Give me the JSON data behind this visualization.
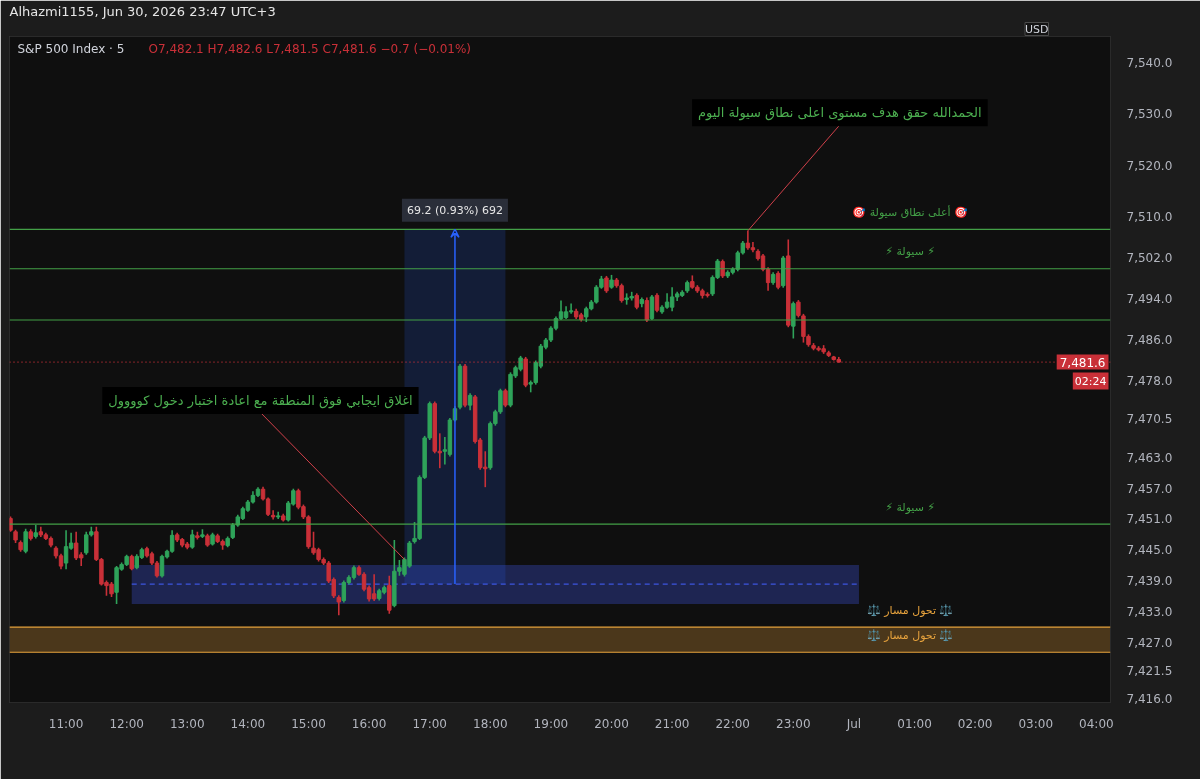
{
  "chart_data": {
    "type": "candlestick",
    "title": "S&P 500 Index · 5",
    "subtitle": "O7,482.1 H7,482.6 L7,481.5 C7,481.6 −0.7 (−0.01%)",
    "ylabel": "USD",
    "xlim": [
      "2026-06-30T10:04",
      "2026-07-01T04:14"
    ],
    "ylim": [
      7415.2,
      7545.1
    ],
    "xticks": [
      {
        "value": "2026-06-30T11:00",
        "label": "11:00"
      },
      {
        "value": "2026-06-30T12:00",
        "label": "12:00"
      },
      {
        "value": "2026-06-30T13:00",
        "label": "13:00"
      },
      {
        "value": "2026-06-30T14:00",
        "label": "14:00"
      },
      {
        "value": "2026-06-30T15:00",
        "label": "15:00"
      },
      {
        "value": "2026-06-30T16:00",
        "label": "16:00"
      },
      {
        "value": "2026-06-30T17:00",
        "label": "17:00"
      },
      {
        "value": "2026-06-30T18:00",
        "label": "18:00"
      },
      {
        "value": "2026-06-30T19:00",
        "label": "19:00"
      },
      {
        "value": "2026-06-30T20:00",
        "label": "20:00"
      },
      {
        "value": "2026-06-30T21:00",
        "label": "21:00"
      },
      {
        "value": "2026-06-30T22:00",
        "label": "22:00"
      },
      {
        "value": "2026-06-30T23:00",
        "label": "23:00"
      },
      {
        "value": "2026-07-01T00:00",
        "label": "Jul"
      },
      {
        "value": "2026-07-01T01:00",
        "label": "01:00"
      },
      {
        "value": "2026-07-01T02:00",
        "label": "02:00"
      },
      {
        "value": "2026-07-01T03:00",
        "label": "03:00"
      },
      {
        "value": "2026-07-01T04:00",
        "label": "04:00"
      }
    ],
    "yticks": [
      {
        "value": 7416.0,
        "label": "7,416.0"
      },
      {
        "value": 7421.5,
        "label": "7,421.5"
      },
      {
        "value": 7427.0,
        "label": "7,427.0"
      },
      {
        "value": 7433.0,
        "label": "7,433.0"
      },
      {
        "value": 7439.0,
        "label": "7,439.0"
      },
      {
        "value": 7445.0,
        "label": "7,445.0"
      },
      {
        "value": 7451.0,
        "label": "7,451.0"
      },
      {
        "value": 7457.0,
        "label": "7,457.0"
      },
      {
        "value": 7463.0,
        "label": "7,463.0"
      },
      {
        "value": 7470.5,
        "label": "7,470.5"
      },
      {
        "value": 7478.0,
        "label": "7,478.0"
      },
      {
        "value": 7486.0,
        "label": "7,486.0"
      },
      {
        "value": 7494.0,
        "label": "7,494.0"
      },
      {
        "value": 7502.0,
        "label": "7,502.0"
      },
      {
        "value": 7510.0,
        "label": "7,510.0"
      },
      {
        "value": 7520.0,
        "label": "7,520.0"
      },
      {
        "value": 7530.0,
        "label": "7,530.0"
      },
      {
        "value": 7540.0,
        "label": "7,540.0"
      }
    ],
    "x": [
      "2026-06-30T10:05",
      "2026-06-30T10:10",
      "2026-06-30T10:15",
      "2026-06-30T10:20",
      "2026-06-30T10:25",
      "2026-06-30T10:30",
      "2026-06-30T10:35",
      "2026-06-30T10:40",
      "2026-06-30T10:45",
      "2026-06-30T10:50",
      "2026-06-30T10:55",
      "2026-06-30T11:00",
      "2026-06-30T11:05",
      "2026-06-30T11:10",
      "2026-06-30T11:15",
      "2026-06-30T11:20",
      "2026-06-30T11:25",
      "2026-06-30T11:30",
      "2026-06-30T11:35",
      "2026-06-30T11:40",
      "2026-06-30T11:45",
      "2026-06-30T11:50",
      "2026-06-30T11:55",
      "2026-06-30T12:00",
      "2026-06-30T12:05",
      "2026-06-30T12:10",
      "2026-06-30T12:15",
      "2026-06-30T12:20",
      "2026-06-30T12:25",
      "2026-06-30T12:30",
      "2026-06-30T12:35",
      "2026-06-30T12:40",
      "2026-06-30T12:45",
      "2026-06-30T12:50",
      "2026-06-30T12:55",
      "2026-06-30T13:00",
      "2026-06-30T13:05",
      "2026-06-30T13:10",
      "2026-06-30T13:15",
      "2026-06-30T13:20",
      "2026-06-30T13:25",
      "2026-06-30T13:30",
      "2026-06-30T13:35",
      "2026-06-30T13:40",
      "2026-06-30T13:45",
      "2026-06-30T13:50",
      "2026-06-30T13:55",
      "2026-06-30T14:00",
      "2026-06-30T14:05",
      "2026-06-30T14:10",
      "2026-06-30T14:15",
      "2026-06-30T14:20",
      "2026-06-30T14:25",
      "2026-06-30T14:30",
      "2026-06-30T14:35",
      "2026-06-30T14:40",
      "2026-06-30T14:45",
      "2026-06-30T14:50",
      "2026-06-30T14:55",
      "2026-06-30T15:00",
      "2026-06-30T15:05",
      "2026-06-30T15:10",
      "2026-06-30T15:15",
      "2026-06-30T15:20",
      "2026-06-30T15:25",
      "2026-06-30T15:30",
      "2026-06-30T15:35",
      "2026-06-30T15:40",
      "2026-06-30T15:45",
      "2026-06-30T15:50",
      "2026-06-30T15:55",
      "2026-06-30T16:00",
      "2026-06-30T16:05",
      "2026-06-30T16:10",
      "2026-06-30T16:15",
      "2026-06-30T16:20",
      "2026-06-30T16:25",
      "2026-06-30T16:30",
      "2026-06-30T16:35",
      "2026-06-30T16:40",
      "2026-06-30T16:45",
      "2026-06-30T16:50",
      "2026-06-30T16:55",
      "2026-06-30T17:00",
      "2026-06-30T17:05",
      "2026-06-30T17:10",
      "2026-06-30T17:15",
      "2026-06-30T17:20",
      "2026-06-30T17:25",
      "2026-06-30T17:30",
      "2026-06-30T17:35",
      "2026-06-30T17:40",
      "2026-06-30T17:45",
      "2026-06-30T17:50",
      "2026-06-30T17:55",
      "2026-06-30T18:00",
      "2026-06-30T18:05",
      "2026-06-30T18:10",
      "2026-06-30T18:15",
      "2026-06-30T18:20",
      "2026-06-30T18:25",
      "2026-06-30T18:30",
      "2026-06-30T18:35",
      "2026-06-30T18:40",
      "2026-06-30T18:45",
      "2026-06-30T18:50",
      "2026-06-30T18:55",
      "2026-06-30T19:00",
      "2026-06-30T19:05",
      "2026-06-30T19:10",
      "2026-06-30T19:15",
      "2026-06-30T19:20",
      "2026-06-30T19:25",
      "2026-06-30T19:30",
      "2026-06-30T19:35",
      "2026-06-30T19:40",
      "2026-06-30T19:45",
      "2026-06-30T19:50",
      "2026-06-30T19:55",
      "2026-06-30T20:00",
      "2026-06-30T20:05",
      "2026-06-30T20:10",
      "2026-06-30T20:15",
      "2026-06-30T20:20",
      "2026-06-30T20:25",
      "2026-06-30T20:30",
      "2026-06-30T20:35",
      "2026-06-30T20:40",
      "2026-06-30T20:45",
      "2026-06-30T20:50",
      "2026-06-30T20:55",
      "2026-06-30T21:00",
      "2026-06-30T21:05",
      "2026-06-30T21:10",
      "2026-06-30T21:15",
      "2026-06-30T21:20",
      "2026-06-30T21:25",
      "2026-06-30T21:30",
      "2026-06-30T21:35",
      "2026-06-30T21:40",
      "2026-06-30T21:45",
      "2026-06-30T21:50",
      "2026-06-30T21:55",
      "2026-06-30T22:00",
      "2026-06-30T22:05",
      "2026-06-30T22:10",
      "2026-06-30T22:15",
      "2026-06-30T22:20",
      "2026-06-30T22:25",
      "2026-06-30T22:30",
      "2026-06-30T22:35",
      "2026-06-30T22:40",
      "2026-06-30T22:45",
      "2026-06-30T22:50",
      "2026-06-30T22:55",
      "2026-06-30T23:00",
      "2026-06-30T23:05",
      "2026-06-30T23:10",
      "2026-06-30T23:15",
      "2026-06-30T23:20",
      "2026-06-30T23:25",
      "2026-06-30T23:30",
      "2026-06-30T23:35",
      "2026-06-30T23:40",
      "2026-06-30T23:45"
    ],
    "ohlc": [
      [
        7451.1,
        7451.5,
        7448.5,
        7448.8
      ],
      [
        7448.5,
        7448.9,
        7446.3,
        7446.9
      ],
      [
        7446.4,
        7446.8,
        7444.6,
        7445.0
      ],
      [
        7444.7,
        7449.1,
        7444.3,
        7448.5
      ],
      [
        7448.5,
        7449.0,
        7446.8,
        7447.2
      ],
      [
        7447.6,
        7449.8,
        7447.2,
        7448.3
      ],
      [
        7448.5,
        7449.5,
        7447.5,
        7447.9
      ],
      [
        7447.9,
        7448.3,
        7446.9,
        7447.2
      ],
      [
        7447.2,
        7447.6,
        7445.5,
        7445.9
      ],
      [
        7445.3,
        7445.7,
        7443.3,
        7443.8
      ],
      [
        7443.8,
        7444.2,
        7441.2,
        7441.8
      ],
      [
        7442.4,
        7448.8,
        7441.2,
        7445.6
      ],
      [
        7445.3,
        7448.3,
        7445.0,
        7446.3
      ],
      [
        7446.3,
        7448.5,
        7443.0,
        7443.4
      ],
      [
        7444.0,
        7444.5,
        7441.8,
        7443.4
      ],
      [
        7444.4,
        7448.5,
        7444.0,
        7447.9
      ],
      [
        7447.9,
        7449.5,
        7447.6,
        7448.5
      ],
      [
        7448.5,
        7449.5,
        7442.8,
        7443.1
      ],
      [
        7443.1,
        7443.4,
        7438.0,
        7438.3
      ],
      [
        7438.6,
        7439.0,
        7436.0,
        7438.0
      ],
      [
        7438.3,
        7438.7,
        7435.8,
        7436.4
      ],
      [
        7436.7,
        7441.8,
        7434.4,
        7441.5
      ],
      [
        7441.2,
        7442.5,
        7440.9,
        7442.1
      ],
      [
        7442.1,
        7444.0,
        7441.8,
        7443.7
      ],
      [
        7443.7,
        7444.0,
        7441.0,
        7441.3
      ],
      [
        7441.5,
        7444.1,
        7441.2,
        7443.7
      ],
      [
        7443.5,
        7445.4,
        7443.2,
        7445.0
      ],
      [
        7445.2,
        7445.6,
        7443.5,
        7443.8
      ],
      [
        7444.2,
        7444.6,
        7442.0,
        7442.4
      ],
      [
        7442.4,
        7442.8,
        7439.6,
        7439.9
      ],
      [
        7439.9,
        7444.0,
        7439.6,
        7443.7
      ],
      [
        7443.6,
        7445.0,
        7443.3,
        7444.7
      ],
      [
        7444.7,
        7448.8,
        7444.4,
        7447.8
      ],
      [
        7447.9,
        7448.3,
        7446.5,
        7446.9
      ],
      [
        7447.0,
        7447.3,
        7445.5,
        7445.9
      ],
      [
        7446.1,
        7446.5,
        7445.1,
        7445.5
      ],
      [
        7445.5,
        7448.9,
        7445.2,
        7447.9
      ],
      [
        7447.7,
        7448.5,
        7447.0,
        7447.4
      ],
      [
        7447.6,
        7449.0,
        7447.3,
        7447.9
      ],
      [
        7447.7,
        7448.1,
        7445.6,
        7445.9
      ],
      [
        7446.1,
        7448.3,
        7445.8,
        7447.9
      ],
      [
        7447.7,
        7448.1,
        7446.3,
        7446.6
      ],
      [
        7446.6,
        7447.0,
        7445.0,
        7445.9
      ],
      [
        7445.8,
        7447.6,
        7445.5,
        7447.2
      ],
      [
        7447.4,
        7450.2,
        7447.1,
        7449.8
      ],
      [
        7449.8,
        7451.8,
        7449.5,
        7451.4
      ],
      [
        7451.1,
        7453.4,
        7450.8,
        7453.0
      ],
      [
        7452.7,
        7454.7,
        7452.4,
        7454.3
      ],
      [
        7454.3,
        7456.4,
        7454.0,
        7455.6
      ],
      [
        7455.6,
        7457.2,
        7455.3,
        7456.8
      ],
      [
        7456.8,
        7457.3,
        7454.6,
        7454.9
      ],
      [
        7454.9,
        7455.2,
        7451.6,
        7451.9
      ],
      [
        7451.7,
        7452.7,
        7450.9,
        7451.4
      ],
      [
        7451.4,
        7452.4,
        7451.0,
        7451.6
      ],
      [
        7451.6,
        7452.0,
        7450.5,
        7450.8
      ],
      [
        7450.8,
        7454.5,
        7450.5,
        7454.1
      ],
      [
        7453.9,
        7456.9,
        7453.6,
        7456.5
      ],
      [
        7456.5,
        7456.9,
        7452.9,
        7453.3
      ],
      [
        7453.4,
        7453.8,
        7451.0,
        7451.4
      ],
      [
        7451.4,
        7451.7,
        7445.2,
        7445.6
      ],
      [
        7445.3,
        7448.5,
        7444.0,
        7444.4
      ],
      [
        7445.0,
        7445.4,
        7442.7,
        7443.1
      ],
      [
        7443.1,
        7443.5,
        7442.0,
        7442.4
      ],
      [
        7442.4,
        7442.8,
        7438.5,
        7438.9
      ],
      [
        7439.2,
        7439.6,
        7435.6,
        7436.0
      ],
      [
        7435.7,
        7436.1,
        7432.2,
        7434.8
      ],
      [
        7435.1,
        7439.0,
        7434.7,
        7438.6
      ],
      [
        7438.6,
        7440.0,
        7438.2,
        7439.6
      ],
      [
        7439.6,
        7441.9,
        7439.2,
        7441.5
      ],
      [
        7441.5,
        7441.9,
        7439.9,
        7440.2
      ],
      [
        7440.2,
        7440.6,
        7436.9,
        7437.3
      ],
      [
        7437.6,
        7438.0,
        7434.9,
        7435.4
      ],
      [
        7436.4,
        7440.2,
        7435.0,
        7435.4
      ],
      [
        7435.5,
        7437.4,
        7435.1,
        7437.0
      ],
      [
        7436.7,
        7438.0,
        7436.3,
        7437.6
      ],
      [
        7438.0,
        7439.9,
        7432.5,
        7433.2
      ],
      [
        7434.1,
        7446.9,
        7433.8,
        7440.8
      ],
      [
        7440.8,
        7443.0,
        7439.9,
        7441.5
      ],
      [
        7440.2,
        7443.5,
        7439.8,
        7443.1
      ],
      [
        7441.8,
        7446.7,
        7441.5,
        7446.3
      ],
      [
        7446.6,
        7450.4,
        7446.2,
        7447.2
      ],
      [
        7447.2,
        7459.5,
        7446.9,
        7459.1
      ],
      [
        7459.1,
        7467.2,
        7458.8,
        7466.8
      ],
      [
        7466.8,
        7473.9,
        7466.4,
        7473.5
      ],
      [
        7473.5,
        7473.9,
        7463.8,
        7464.2
      ],
      [
        7464.2,
        7467.7,
        7460.9,
        7463.9
      ],
      [
        7464.2,
        7467.0,
        7461.6,
        7464.5
      ],
      [
        7463.6,
        7470.7,
        7463.2,
        7470.3
      ],
      [
        7470.3,
        7473.0,
        7470.0,
        7472.5
      ],
      [
        7472.8,
        7481.2,
        7472.4,
        7480.8
      ],
      [
        7480.8,
        7481.2,
        7472.8,
        7473.2
      ],
      [
        7473.2,
        7475.5,
        7472.2,
        7475.1
      ],
      [
        7474.8,
        7475.2,
        7465.7,
        7466.1
      ],
      [
        7466.4,
        7466.8,
        7460.6,
        7461.0
      ],
      [
        7461.1,
        7464.2,
        7457.2,
        7460.8
      ],
      [
        7461.0,
        7470.0,
        7460.6,
        7469.6
      ],
      [
        7469.6,
        7472.3,
        7469.2,
        7471.9
      ],
      [
        7471.9,
        7476.4,
        7471.5,
        7476.0
      ],
      [
        7476.0,
        7476.4,
        7472.8,
        7473.2
      ],
      [
        7473.2,
        7479.6,
        7472.8,
        7479.2
      ],
      [
        7478.9,
        7480.9,
        7478.5,
        7480.5
      ],
      [
        7480.2,
        7482.8,
        7479.8,
        7482.4
      ],
      [
        7482.2,
        7482.6,
        7476.7,
        7477.1
      ],
      [
        7477.3,
        7478.0,
        7475.7,
        7477.6
      ],
      [
        7477.6,
        7481.9,
        7477.2,
        7481.5
      ],
      [
        7480.8,
        7485.1,
        7480.4,
        7484.7
      ],
      [
        7484.5,
        7486.3,
        7484.1,
        7485.9
      ],
      [
        7485.9,
        7488.6,
        7485.5,
        7488.2
      ],
      [
        7488.2,
        7490.5,
        7487.8,
        7490.1
      ],
      [
        7490.1,
        7493.6,
        7489.8,
        7491.4
      ],
      [
        7490.3,
        7492.5,
        7490.0,
        7491.4
      ],
      [
        7491.4,
        7493.0,
        7491.0,
        7491.6
      ],
      [
        7491.5,
        7492.0,
        7490.0,
        7490.4
      ],
      [
        7490.8,
        7491.2,
        7489.5,
        7489.9
      ],
      [
        7490.4,
        7492.4,
        7489.4,
        7492.0
      ],
      [
        7492.0,
        7493.7,
        7491.7,
        7493.3
      ],
      [
        7493.3,
        7496.6,
        7493.0,
        7496.2
      ],
      [
        7496.2,
        7498.4,
        7495.9,
        7497.8
      ],
      [
        7498.0,
        7498.4,
        7495.1,
        7495.5
      ],
      [
        7496.2,
        7498.6,
        7495.9,
        7497.6
      ],
      [
        7497.6,
        7498.0,
        7496.1,
        7496.5
      ],
      [
        7496.5,
        7496.9,
        7493.2,
        7493.6
      ],
      [
        7493.8,
        7495.0,
        7492.8,
        7494.1
      ],
      [
        7494.1,
        7495.3,
        7493.6,
        7494.4
      ],
      [
        7494.6,
        7495.0,
        7491.9,
        7492.3
      ],
      [
        7493.0,
        7494.2,
        7492.3,
        7493.8
      ],
      [
        7493.6,
        7494.2,
        7489.4,
        7489.8
      ],
      [
        7490.1,
        7494.7,
        7489.8,
        7494.3
      ],
      [
        7494.6,
        7495.0,
        7491.3,
        7491.7
      ],
      [
        7491.4,
        7492.7,
        7491.0,
        7492.3
      ],
      [
        7492.3,
        7495.0,
        7492.0,
        7493.3
      ],
      [
        7492.3,
        7496.2,
        7491.5,
        7494.3
      ],
      [
        7494.3,
        7495.3,
        7493.5,
        7494.9
      ],
      [
        7494.6,
        7495.6,
        7494.3,
        7495.2
      ],
      [
        7495.5,
        7497.5,
        7495.1,
        7497.1
      ],
      [
        7497.3,
        7498.5,
        7495.9,
        7496.2
      ],
      [
        7496.2,
        7496.6,
        7495.1,
        7495.5
      ],
      [
        7495.5,
        7495.9,
        7494.0,
        7494.6
      ],
      [
        7494.8,
        7495.2,
        7494.2,
        7494.6
      ],
      [
        7494.9,
        7498.5,
        7494.5,
        7498.1
      ],
      [
        7498.1,
        7501.7,
        7497.8,
        7501.3
      ],
      [
        7501.2,
        7501.6,
        7498.0,
        7498.4
      ],
      [
        7498.4,
        7499.5,
        7498.0,
        7499.1
      ],
      [
        7499.1,
        7500.1,
        7498.7,
        7499.7
      ],
      [
        7499.7,
        7503.3,
        7499.3,
        7502.9
      ],
      [
        7502.9,
        7505.2,
        7502.6,
        7504.8
      ],
      [
        7504.8,
        7507.2,
        7503.5,
        7503.9
      ],
      [
        7503.9,
        7505.0,
        7503.0,
        7503.5
      ],
      [
        7503.2,
        7503.6,
        7501.4,
        7501.8
      ],
      [
        7502.3,
        7502.7,
        7499.3,
        7499.7
      ],
      [
        7499.7,
        7500.1,
        7495.5,
        7497.1
      ],
      [
        7497.1,
        7499.1,
        7496.7,
        7498.7
      ],
      [
        7498.9,
        7499.3,
        7495.8,
        7496.2
      ],
      [
        7496.5,
        7502.3,
        7496.1,
        7501.9
      ],
      [
        7502.3,
        7505.5,
        7488.4,
        7488.8
      ],
      [
        7488.6,
        7493.4,
        7486.2,
        7493.0
      ],
      [
        7493.3,
        7493.7,
        7490.3,
        7490.7
      ],
      [
        7490.6,
        7491.0,
        7485.4,
        7486.6
      ],
      [
        7486.6,
        7487.0,
        7484.6,
        7485.0
      ],
      [
        7484.8,
        7485.3,
        7483.9,
        7484.3
      ],
      [
        7484.3,
        7484.7,
        7483.7,
        7484.0
      ],
      [
        7484.2,
        7484.9,
        7483.2,
        7483.6
      ],
      [
        7483.4,
        7483.8,
        7482.6,
        7482.9
      ],
      [
        7482.6,
        7482.8,
        7481.9,
        7482.1
      ],
      [
        7482.1,
        7482.6,
        7481.5,
        7481.6
      ]
    ],
    "colors": [
      "#c93038",
      "#c93038",
      "#c93038",
      "#2fa35a",
      "#c93038",
      "#2fa35a",
      "#c93038",
      "#c93038",
      "#c93038",
      "#c93038",
      "#c93038",
      "#2fa35a",
      "#2fa35a",
      "#c93038",
      "#c93038",
      "#2fa35a",
      "#2fa35a",
      "#c93038",
      "#c93038",
      "#c93038",
      "#c93038",
      "#2fa35a",
      "#2fa35a",
      "#2fa35a",
      "#c93038",
      "#2fa35a",
      "#2fa35a",
      "#c93038",
      "#c93038",
      "#c93038",
      "#2fa35a",
      "#2fa35a",
      "#2fa35a",
      "#c93038",
      "#c93038",
      "#c93038",
      "#2fa35a",
      "#c93038",
      "#2fa35a",
      "#c93038",
      "#2fa35a",
      "#c93038",
      "#c93038",
      "#2fa35a",
      "#2fa35a",
      "#2fa35a",
      "#2fa35a",
      "#2fa35a",
      "#2fa35a",
      "#2fa35a",
      "#c93038",
      "#c93038",
      "#c93038",
      "#2fa35a",
      "#c93038",
      "#2fa35a",
      "#2fa35a",
      "#c93038",
      "#c93038",
      "#c93038",
      "#c93038",
      "#c93038",
      "#c93038",
      "#c93038",
      "#c93038",
      "#c93038",
      "#2fa35a",
      "#2fa35a",
      "#2fa35a",
      "#c93038",
      "#c93038",
      "#c93038",
      "#c93038",
      "#2fa35a",
      "#2fa35a",
      "#c93038",
      "#2fa35a",
      "#2fa35a",
      "#2fa35a",
      "#2fa35a",
      "#2fa35a",
      "#2fa35a",
      "#2fa35a",
      "#2fa35a",
      "#c93038",
      "#c93038",
      "#2fa35a",
      "#2fa35a",
      "#2fa35a",
      "#2fa35a",
      "#c93038",
      "#2fa35a",
      "#c93038",
      "#c93038",
      "#c93038",
      "#2fa35a",
      "#2fa35a",
      "#2fa35a",
      "#c93038",
      "#2fa35a",
      "#2fa35a",
      "#2fa35a",
      "#c93038",
      "#2fa35a",
      "#2fa35a",
      "#2fa35a",
      "#2fa35a",
      "#2fa35a",
      "#2fa35a",
      "#2fa35a",
      "#2fa35a",
      "#2fa35a",
      "#c93038",
      "#c93038",
      "#2fa35a",
      "#2fa35a",
      "#2fa35a",
      "#2fa35a",
      "#c93038",
      "#2fa35a",
      "#c93038",
      "#c93038",
      "#2fa35a",
      "#2fa35a",
      "#c93038",
      "#2fa35a",
      "#c93038",
      "#2fa35a",
      "#c93038",
      "#2fa35a",
      "#2fa35a",
      "#2fa35a",
      "#2fa35a",
      "#2fa35a",
      "#2fa35a",
      "#c93038",
      "#c93038",
      "#c93038",
      "#c93038",
      "#2fa35a",
      "#2fa35a",
      "#c93038",
      "#2fa35a",
      "#2fa35a",
      "#2fa35a",
      "#2fa35a",
      "#c93038",
      "#c93038",
      "#c93038",
      "#c93038",
      "#c93038",
      "#2fa35a",
      "#c93038",
      "#2fa35a",
      "#c93038",
      "#2fa35a",
      "#c93038",
      "#c93038",
      "#c93038",
      "#c93038",
      "#c93038",
      "#c93038",
      "#c93038",
      "#c93038",
      "#c93038"
    ],
    "series": [
      {
        "type": "line",
        "x": [
          "2026-06-30T12:05",
          "2026-07-01T00:05"
        ],
        "values": [
          7438.3,
          7438.3
        ],
        "lower": [
          7434.4,
          7434.4
        ],
        "upper": [
          7442.0,
          7442.0
        ],
        "color": "#3d55e0",
        "line_style": "dashed"
      },
      {
        "type": "bar",
        "x": [
          "2026-06-30T17:25"
        ],
        "base": [
          7438.3
        ],
        "values": [
          69.2
        ],
        "value_labels": [
          "69.2 (0.93%) 692"
        ],
        "color": "#2962ff"
      }
    ],
    "ref_lines": [
      {
        "axis": "y",
        "value": 7507.5,
        "label": "🎯 أعلى نطاق سيولة 🎯",
        "color": "#43a047"
      },
      {
        "axis": "y",
        "value": 7499.8,
        "label": "⚡ سيولة ⚡",
        "color": "#43a047"
      },
      {
        "axis": "y",
        "value": 7489.8,
        "color": "#43a047"
      },
      {
        "axis": "y",
        "value": 7450.0,
        "label": "⚡ سيولة ⚡",
        "color": "#43a047"
      },
      {
        "axis": "y",
        "value": 7429.9,
        "label": "⚖️ تحول مسار ⚖️",
        "color": "#e8a33d"
      },
      {
        "axis": "y",
        "value": 7425.0,
        "label": "⚖️ تحول مسار ⚖️",
        "color": "#e8a33d"
      },
      {
        "axis": "y",
        "value": 7481.6,
        "label": "7,481.6",
        "color": "#c93038",
        "line_style": "dotted"
      }
    ],
    "bands": [
      {
        "axis": "y",
        "from": 7425.0,
        "to": 7429.9,
        "color": "#e8a33d"
      }
    ],
    "annotations": [
      "Alhazmi1155, Jun 30, 2026 23:47 UTC+3",
      "02:24",
      {
        "text": "الحمدالله حقق هدف مستوى اعلى نطاق سيولة اليوم",
        "x": "2026-06-30T22:15",
        "y": 7507.2
      },
      {
        "text": "اغلاق ايجابي فوق المنطقة مع اعادة اختبار دخول كوووول",
        "x": "2026-06-30T16:35",
        "y": 7443.1
      }
    ]
  }
}
